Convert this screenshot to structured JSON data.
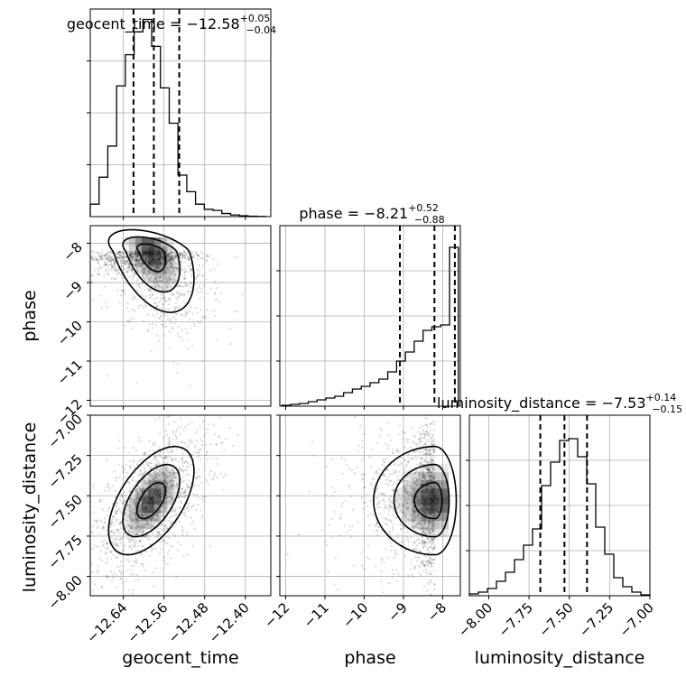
{
  "chart_data": {
    "type": "corner",
    "parameters": [
      "geocent_time",
      "phase",
      "luminosity_distance"
    ],
    "axis_labels": {
      "geocent_time": "geocent_time",
      "phase": "phase",
      "luminosity_distance": "luminosity_distance"
    },
    "ranges": {
      "geocent_time": [
        -12.705,
        -12.35
      ],
      "phase": [
        -12.15,
        -7.55
      ],
      "luminosity_distance": [
        -8.12,
        -7.0
      ]
    },
    "ticks": {
      "geocent_time": [
        -12.64,
        -12.56,
        -12.48,
        -12.4
      ],
      "phase": [
        -12,
        -11,
        -10,
        -9,
        -8
      ],
      "luminosity_distance": [
        -8.0,
        -7.75,
        -7.5,
        -7.25,
        -7.0
      ]
    },
    "tick_labels": {
      "geocent_time": [
        "−12.64",
        "−12.56",
        "−12.48",
        "−12.40"
      ],
      "phase": [
        "−12",
        "−11",
        "−10",
        "−9",
        "−8"
      ],
      "luminosity_distance": [
        "−8.00",
        "−7.75",
        "−7.50",
        "−7.25",
        "−7.00"
      ]
    },
    "titles": [
      {
        "param": "geocent_time",
        "text": "geocent_time = −12.58",
        "sup": "+0.05",
        "sub": "−0.04"
      },
      {
        "param": "phase",
        "text": "phase = −8.21",
        "sup": "+0.52",
        "sub": "−0.88"
      },
      {
        "param": "luminosity_distance",
        "text": "luminosity_distance = −7.53",
        "sup": "+0.14",
        "sub": "−0.15"
      }
    ],
    "quantile_lines": {
      "geocent_time": [
        -12.62,
        -12.58,
        -12.53
      ],
      "phase": [
        -9.09,
        -8.21,
        -7.69
      ],
      "luminosity_distance": [
        -7.68,
        -7.53,
        -7.39
      ]
    },
    "histograms": {
      "geocent_time": {
        "edges": [
          -12.705,
          -12.6877,
          -12.6705,
          -12.6532,
          -12.636,
          -12.6187,
          -12.6015,
          -12.5842,
          -12.567,
          -12.5497,
          -12.5325,
          -12.5152,
          -12.498,
          -12.4807,
          -12.4635,
          -12.4462,
          -12.429,
          -12.4117,
          -12.3945,
          -12.3772,
          -12.36
        ],
        "counts": [
          0.06,
          0.19,
          0.34,
          0.63,
          0.78,
          0.89,
          0.95,
          0.82,
          0.62,
          0.45,
          0.2,
          0.12,
          0.06,
          0.035,
          0.03,
          0.015,
          0.008,
          0.004,
          0.002,
          0.001
        ]
      },
      "phase": {
        "edges": [
          -12.1,
          -11.875,
          -11.65,
          -11.425,
          -11.2,
          -10.975,
          -10.75,
          -10.525,
          -10.3,
          -10.075,
          -9.85,
          -9.625,
          -9.4,
          -9.175,
          -8.95,
          -8.725,
          -8.5,
          -8.275,
          -8.05,
          -7.825,
          -7.6
        ],
        "counts": [
          0.005,
          0.01,
          0.015,
          0.025,
          0.035,
          0.045,
          0.055,
          0.075,
          0.095,
          0.11,
          0.13,
          0.15,
          0.19,
          0.25,
          0.3,
          0.36,
          0.42,
          0.44,
          0.45,
          0.88
        ]
      },
      "luminosity_distance": {
        "edges": [
          -8.12,
          -8.064,
          -8.008,
          -7.952,
          -7.896,
          -7.84,
          -7.784,
          -7.728,
          -7.672,
          -7.616,
          -7.56,
          -7.504,
          -7.448,
          -7.392,
          -7.336,
          -7.28,
          -7.224,
          -7.168,
          -7.112,
          -7.056,
          -7.0
        ],
        "counts": [
          0.01,
          0.02,
          0.04,
          0.08,
          0.13,
          0.2,
          0.28,
          0.37,
          0.61,
          0.74,
          0.86,
          0.87,
          0.77,
          0.62,
          0.38,
          0.23,
          0.1,
          0.05,
          0.02,
          0.005
        ]
      }
    },
    "scatter_2d": [
      {
        "x": "geocent_time",
        "y": "phase",
        "center": [
          -12.585,
          -8.2
        ],
        "spread": [
          0.035,
          0.65
        ],
        "corr": -0.45
      },
      {
        "x": "geocent_time",
        "y": "luminosity_distance",
        "center": [
          -12.585,
          -7.53
        ],
        "spread": [
          0.035,
          0.14
        ],
        "corr": 0.55
      },
      {
        "x": "phase",
        "y": "luminosity_distance",
        "center": [
          -8.2,
          -7.53
        ],
        "spread": [
          0.65,
          0.14
        ],
        "corr": 0.0
      }
    ],
    "contour_levels": 3,
    "grid": true,
    "colors": {
      "line": "#000000",
      "grid": "#b0b0b0",
      "points": "#000000",
      "density": "#000000"
    }
  }
}
